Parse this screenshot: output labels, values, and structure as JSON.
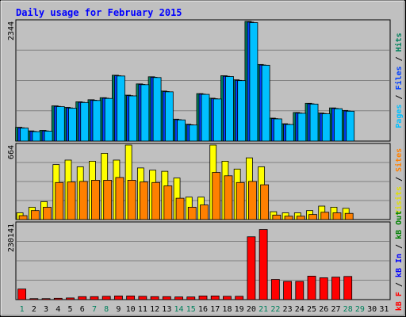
{
  "chart_data": {
    "type": "bar",
    "title": "Daily usage for February 2015",
    "x": [
      "1",
      "2",
      "3",
      "4",
      "5",
      "6",
      "7",
      "8",
      "9",
      "10",
      "11",
      "12",
      "13",
      "14",
      "15",
      "16",
      "17",
      "18",
      "19",
      "20",
      "21",
      "22",
      "23",
      "24",
      "25",
      "26",
      "27",
      "28",
      "29",
      "30",
      "31"
    ],
    "weekend_days": [
      "1",
      "7",
      "8",
      "14",
      "15",
      "21",
      "22",
      "28",
      "29"
    ],
    "panels": [
      {
        "id": "hits",
        "ymax": 2344,
        "ymax_label": "2344",
        "right_label_parts": [
          {
            "text": "Pages",
            "color": "#00C0FF"
          },
          {
            "text": " / ",
            "color": "#000000"
          },
          {
            "text": "Files",
            "color": "#0040FF"
          },
          {
            "text": " / ",
            "color": "#000000"
          },
          {
            "text": "Hits",
            "color": "#00805C"
          }
        ],
        "series": [
          {
            "name": "Hits",
            "color": "#00805C",
            "values": [
              270,
              200,
              210,
              690,
              660,
              770,
              810,
              850,
              1290,
              900,
              1120,
              1260,
              980,
              430,
              330,
              930,
              840,
              1280,
              1200,
              2344,
              1500,
              450,
              340,
              560,
              740,
              550,
              650,
              600,
              0,
              0,
              0
            ]
          },
          {
            "name": "Files",
            "color": "#0040FF",
            "values": [
              260,
              190,
              200,
              680,
              650,
              760,
              800,
              840,
              1280,
              890,
              1110,
              1250,
              970,
              420,
              320,
              920,
              830,
              1270,
              1190,
              2330,
              1490,
              440,
              330,
              550,
              730,
              540,
              640,
              590,
              0,
              0,
              0
            ]
          },
          {
            "name": "Pages",
            "color": "#00C0FF",
            "values": [
              255,
              185,
              195,
              675,
              645,
              755,
              795,
              835,
              1275,
              885,
              1105,
              1245,
              965,
              415,
              315,
              915,
              825,
              1265,
              1185,
              2320,
              1485,
              435,
              325,
              545,
              725,
              535,
              635,
              585,
              0,
              0,
              0
            ]
          }
        ]
      },
      {
        "id": "visits",
        "ymax": 664,
        "ymax_label": "664",
        "right_label_parts": [
          {
            "text": "Visits",
            "color": "#E0E000"
          },
          {
            "text": " / ",
            "color": "#000000"
          },
          {
            "text": "Sites",
            "color": "#FF8000"
          }
        ],
        "series": [
          {
            "name": "Visits",
            "color": "#FFFF00",
            "values": [
              60,
              110,
              160,
              490,
              530,
              470,
              520,
              590,
              530,
              664,
              460,
              440,
              430,
              370,
              200,
              200,
              664,
              520,
              450,
              550,
              470,
              70,
              60,
              60,
              80,
              120,
              110,
              100,
              0,
              0,
              0
            ]
          },
          {
            "name": "Sites",
            "color": "#FF8000",
            "values": [
              35,
              80,
              110,
              330,
              335,
              340,
              350,
              350,
              375,
              350,
              335,
              330,
              300,
              190,
              110,
              130,
              420,
              390,
              330,
              340,
              310,
              40,
              30,
              30,
              45,
              65,
              60,
              55,
              0,
              0,
              0
            ]
          }
        ]
      },
      {
        "id": "kbytes",
        "ymax": 230141,
        "ymax_label": "230141",
        "right_label_parts": [
          {
            "text": "kB F",
            "color": "#FF0000"
          },
          {
            "text": " / ",
            "color": "#000000"
          },
          {
            "text": "kB In",
            "color": "#0000FF"
          },
          {
            "text": " / ",
            "color": "#000000"
          },
          {
            "text": "kB Out",
            "color": "#008000"
          }
        ],
        "series": [
          {
            "name": "kB F",
            "color": "#FF0000",
            "values": [
              32000,
              3000,
              3000,
              4000,
              5000,
              9000,
              9000,
              10000,
              11000,
              11000,
              10000,
              9000,
              9000,
              8000,
              8000,
              11000,
              11000,
              10000,
              10000,
              190000,
              212000,
              61000,
              55000,
              55000,
              71000,
              66000,
              68000,
              70000,
              0,
              0,
              0
            ]
          }
        ]
      }
    ]
  }
}
